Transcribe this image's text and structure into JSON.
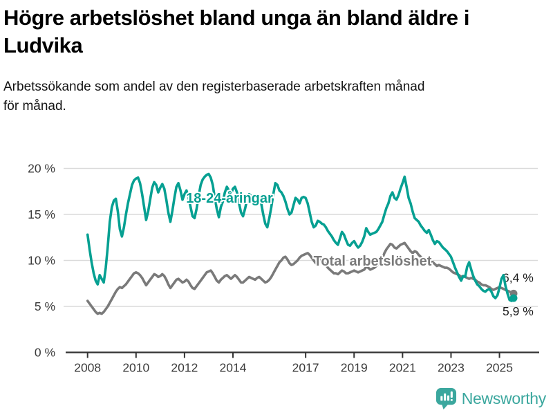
{
  "header": {
    "title_lines": [
      "Högre arbetslöshet bland unga än bland äldre i",
      "Ludvika"
    ],
    "subtitle_lines": [
      "Arbetssökande som andel av den registerbaserade arbetskraften månad",
      "för månad."
    ]
  },
  "colors": {
    "accent_teal": "#06a092",
    "line_gray": "#7a7a7a",
    "grid": "#dadada",
    "axis": "#333333",
    "tick_text": "#3b3b3b",
    "end_label_text": "#1a1a1a",
    "brand_teal": "#3ba79e"
  },
  "chart_data": {
    "type": "line",
    "frequency": "monthly",
    "x_start": "2008-01",
    "x_end": "2025-08",
    "ylim": [
      0,
      20
    ],
    "grid": true,
    "y_tick_values": [
      0,
      5,
      10,
      15,
      20
    ],
    "y_tick_labels": [
      "0 %",
      "5 %",
      "10 %",
      "15 %",
      "20 %"
    ],
    "x_tick_years": [
      2008,
      2010,
      2012,
      2014,
      2017,
      2019,
      2021,
      2023,
      2025
    ],
    "series": [
      {
        "name": "18-24-åringar",
        "color": "#06a092",
        "end_label": "5,9 %",
        "end_value": 5.9,
        "values": [
          12.8,
          11.2,
          9.8,
          8.6,
          7.8,
          7.4,
          8.4,
          8.0,
          7.6,
          9.2,
          11.5,
          14.2,
          15.8,
          16.5,
          16.7,
          15.3,
          13.4,
          12.6,
          13.6,
          15.0,
          16.2,
          17.2,
          18.2,
          18.7,
          18.9,
          19.0,
          18.4,
          17.2,
          15.8,
          14.4,
          15.3,
          16.6,
          17.9,
          18.5,
          18.2,
          17.4,
          17.9,
          18.3,
          17.8,
          16.6,
          15.2,
          14.2,
          15.4,
          16.8,
          18.0,
          18.4,
          17.6,
          16.6,
          17.2,
          17.6,
          16.9,
          15.8,
          14.8,
          14.6,
          15.6,
          17.0,
          18.2,
          18.8,
          19.1,
          19.3,
          19.4,
          19.0,
          18.2,
          16.8,
          15.6,
          14.7,
          15.8,
          16.4,
          17.4,
          18.0,
          17.6,
          17.2,
          17.8,
          18.0,
          17.4,
          16.2,
          15.2,
          14.8,
          15.6,
          16.6,
          17.2,
          17.0,
          16.4,
          16.0,
          16.6,
          16.8,
          16.2,
          15.0,
          14.0,
          13.6,
          14.6,
          15.8,
          17.2,
          18.4,
          18.2,
          17.6,
          17.4,
          17.0,
          16.4,
          15.6,
          15.0,
          15.2,
          16.0,
          16.8,
          16.6,
          16.2,
          16.8,
          16.9,
          16.8,
          16.2,
          15.2,
          14.2,
          13.6,
          13.8,
          14.3,
          14.2,
          14.0,
          13.9,
          13.6,
          13.2,
          12.9,
          12.6,
          12.2,
          11.9,
          11.7,
          12.4,
          13.1,
          12.8,
          12.2,
          11.7,
          11.6,
          11.9,
          12.1,
          11.7,
          11.4,
          11.6,
          12.0,
          12.6,
          13.5,
          13.1,
          12.8,
          12.9,
          13.0,
          13.1,
          13.4,
          13.8,
          14.2,
          15.0,
          15.7,
          16.2,
          17.0,
          17.4,
          16.8,
          16.6,
          17.1,
          17.8,
          18.4,
          19.1,
          18.0,
          16.8,
          16.2,
          15.3,
          14.6,
          14.4,
          14.2,
          13.8,
          13.5,
          13.2,
          13.0,
          13.3,
          12.8,
          12.2,
          11.8,
          12.1,
          12.0,
          11.7,
          11.4,
          11.2,
          11.0,
          10.7,
          10.4,
          9.8,
          9.2,
          8.7,
          8.2,
          7.8,
          8.3,
          8.2,
          9.3,
          9.8,
          9.0,
          8.3,
          7.8,
          7.4,
          7.2,
          6.9,
          6.7,
          6.6,
          6.8,
          6.9,
          6.6,
          6.1,
          5.9,
          6.2,
          7.0,
          8.0,
          8.4,
          7.2,
          6.4,
          5.7,
          5.6,
          5.9
        ]
      },
      {
        "name": "Total arbetslöshet",
        "color": "#7a7a7a",
        "end_label": "6,4 %",
        "end_value": 6.4,
        "values": [
          5.6,
          5.3,
          5.0,
          4.7,
          4.4,
          4.2,
          4.3,
          4.2,
          4.4,
          4.7,
          5.0,
          5.4,
          5.8,
          6.2,
          6.6,
          6.9,
          7.1,
          7.0,
          7.2,
          7.4,
          7.7,
          8.0,
          8.3,
          8.6,
          8.7,
          8.6,
          8.4,
          8.1,
          7.7,
          7.3,
          7.6,
          7.9,
          8.2,
          8.5,
          8.4,
          8.2,
          8.3,
          8.5,
          8.3,
          7.9,
          7.4,
          7.0,
          7.3,
          7.6,
          7.9,
          8.0,
          7.8,
          7.6,
          7.7,
          7.9,
          7.7,
          7.3,
          7.0,
          6.9,
          7.2,
          7.5,
          7.8,
          8.1,
          8.4,
          8.7,
          8.8,
          8.9,
          8.6,
          8.2,
          7.8,
          7.6,
          7.9,
          8.1,
          8.3,
          8.4,
          8.2,
          8.0,
          8.2,
          8.4,
          8.2,
          7.9,
          7.6,
          7.6,
          7.8,
          8.0,
          8.2,
          8.1,
          8.0,
          7.9,
          8.1,
          8.2,
          8.0,
          7.8,
          7.6,
          7.7,
          7.9,
          8.2,
          8.6,
          9.0,
          9.4,
          9.8,
          10.0,
          10.3,
          10.4,
          10.1,
          9.7,
          9.5,
          9.6,
          9.8,
          10.0,
          10.3,
          10.5,
          10.6,
          10.7,
          10.8,
          10.6,
          10.3,
          10.0,
          9.7,
          9.9,
          10.1,
          10.0,
          9.8,
          9.5,
          9.2,
          9.0,
          8.8,
          8.6,
          8.6,
          8.5,
          8.7,
          8.9,
          8.8,
          8.6,
          8.6,
          8.7,
          8.8,
          8.9,
          8.8,
          8.7,
          8.8,
          8.9,
          9.0,
          9.3,
          9.2,
          9.0,
          9.1,
          9.2,
          9.4,
          9.6,
          9.8,
          10.2,
          10.8,
          11.2,
          11.5,
          11.8,
          11.7,
          11.4,
          11.3,
          11.5,
          11.7,
          11.8,
          11.9,
          11.6,
          11.3,
          11.0,
          10.8,
          11.0,
          10.9,
          10.6,
          10.4,
          10.2,
          10.1,
          10.0,
          10.2,
          10.0,
          9.8,
          9.6,
          9.4,
          9.5,
          9.4,
          9.3,
          9.2,
          9.2,
          9.1,
          8.9,
          8.7,
          8.6,
          8.5,
          8.4,
          8.2,
          8.3,
          8.2,
          8.1,
          8.0,
          8.1,
          8.0,
          7.9,
          7.7,
          7.6,
          7.4,
          7.3,
          7.3,
          7.2,
          7.1,
          6.9,
          6.8,
          6.9,
          7.0,
          7.1,
          7.0,
          6.9,
          6.8,
          6.7,
          6.6,
          6.5,
          6.4
        ]
      }
    ]
  },
  "footer": {
    "brand": "Newsworthy",
    "logo_icon": "bar-chart-speech-bubble"
  }
}
